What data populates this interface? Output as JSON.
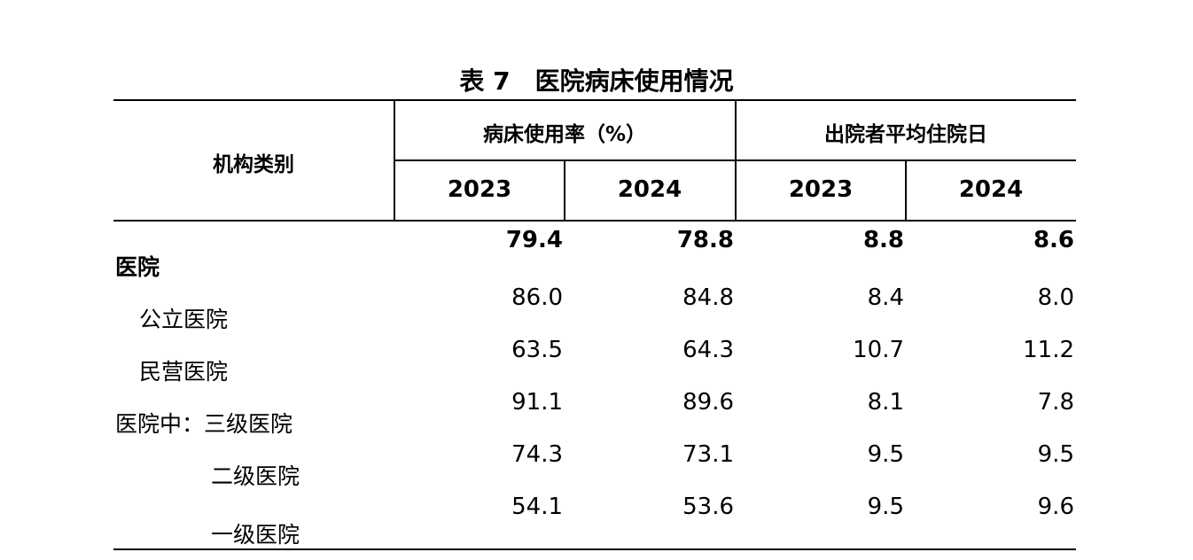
{
  "title": "表 7　医院病床使用情况",
  "table": {
    "headers": {
      "category": "机构类别",
      "group1": "病床使用率（%）",
      "group2": "出院者平均住院日",
      "years": [
        "2023",
        "2024",
        "2023",
        "2024"
      ]
    },
    "rows": [
      {
        "label": "医院",
        "values": [
          "79.4",
          "78.8",
          "8.8",
          "8.6"
        ]
      },
      {
        "label": "公立医院",
        "values": [
          "86.0",
          "84.8",
          "8.4",
          "8.0"
        ]
      },
      {
        "label": "民营医院",
        "values": [
          "63.5",
          "64.3",
          "10.7",
          "11.2"
        ]
      },
      {
        "label": "医院中：三级医院",
        "values": [
          "91.1",
          "89.6",
          "8.1",
          "7.8"
        ]
      },
      {
        "label": "二级医院",
        "values": [
          "74.3",
          "73.1",
          "9.5",
          "9.5"
        ]
      },
      {
        "label": "一级医院",
        "values": [
          "54.1",
          "53.6",
          "9.5",
          "9.6"
        ]
      }
    ]
  }
}
